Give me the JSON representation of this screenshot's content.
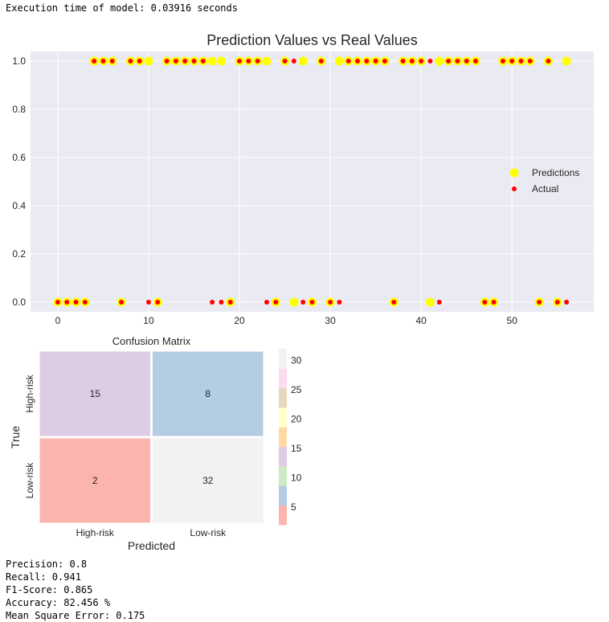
{
  "output": {
    "execution_time": "Execution time of model: 0.03916 seconds",
    "metrics": [
      "Precision: 0.8",
      "Recall: 0.941",
      "F1-Score: 0.865",
      "Accuracy: 82.456 %",
      "Mean Square Error: 0.175"
    ]
  },
  "colors": {
    "plot_bg": "#eaeaf2",
    "predictions": "#ffff00",
    "actual": "#ff0000"
  },
  "chart_data": [
    {
      "type": "scatter",
      "title": "Prediction Values vs Real Values",
      "xlabel": "",
      "ylabel": "",
      "xlim": [
        -3,
        59
      ],
      "ylim": [
        -0.04,
        1.04
      ],
      "xticks": [
        0,
        10,
        20,
        30,
        40,
        50
      ],
      "yticks": [
        0.0,
        0.2,
        0.4,
        0.6,
        0.8,
        1.0
      ],
      "ytick_labels": [
        "0.0",
        "0.2",
        "0.4",
        "0.6",
        "0.8",
        "1.0"
      ],
      "legend_position": "center-right",
      "series": [
        {
          "name": "Predictions",
          "x": [
            0,
            1,
            2,
            3,
            4,
            5,
            6,
            7,
            8,
            9,
            10,
            11,
            12,
            13,
            14,
            15,
            16,
            17,
            18,
            19,
            20,
            21,
            22,
            23,
            24,
            25,
            26,
            27,
            28,
            29,
            30,
            31,
            32,
            33,
            34,
            35,
            36,
            37,
            38,
            39,
            40,
            41,
            42,
            43,
            44,
            45,
            46,
            47,
            48,
            49,
            50,
            51,
            52,
            53,
            54,
            55,
            56
          ],
          "y": [
            0,
            0,
            0,
            0,
            1,
            1,
            1,
            0,
            1,
            1,
            1,
            0,
            1,
            1,
            1,
            1,
            1,
            1,
            1,
            0,
            1,
            1,
            1,
            1,
            0,
            1,
            0,
            1,
            0,
            1,
            0,
            1,
            1,
            1,
            1,
            1,
            1,
            0,
            1,
            1,
            1,
            0,
            1,
            1,
            1,
            1,
            1,
            0,
            0,
            1,
            1,
            1,
            1,
            0,
            1,
            0,
            1
          ]
        },
        {
          "name": "Actual",
          "x": [
            0,
            1,
            2,
            3,
            4,
            5,
            6,
            7,
            8,
            9,
            10,
            11,
            12,
            13,
            14,
            15,
            16,
            17,
            18,
            19,
            20,
            21,
            22,
            23,
            24,
            25,
            26,
            27,
            28,
            29,
            30,
            31,
            32,
            33,
            34,
            35,
            36,
            37,
            38,
            39,
            40,
            41,
            42,
            43,
            44,
            45,
            46,
            47,
            48,
            49,
            50,
            51,
            52,
            53,
            54,
            55,
            56
          ],
          "y": [
            0,
            0,
            0,
            0,
            1,
            1,
            1,
            0,
            1,
            1,
            0,
            0,
            1,
            1,
            1,
            1,
            1,
            0,
            0,
            0,
            1,
            1,
            1,
            0,
            0,
            1,
            1,
            0,
            0,
            1,
            0,
            0,
            1,
            1,
            1,
            1,
            1,
            0,
            1,
            1,
            1,
            1,
            0,
            1,
            1,
            1,
            1,
            0,
            0,
            1,
            1,
            1,
            1,
            0,
            1,
            0,
            0
          ]
        }
      ]
    },
    {
      "type": "heatmap",
      "title": "Confusion Matrix",
      "xlabel": "Predicted",
      "ylabel": "True",
      "x_categories": [
        "High-risk",
        "Low-risk"
      ],
      "y_categories": [
        "High-risk",
        "Low-risk"
      ],
      "values": [
        [
          15,
          8
        ],
        [
          2,
          32
        ]
      ],
      "value_labels": [
        [
          "15",
          "8"
        ],
        [
          "2",
          "32"
        ]
      ],
      "colormap": "Pastel1",
      "colorbar_range": [
        2,
        32
      ],
      "colorbar_ticks": [
        5,
        10,
        15,
        20,
        25,
        30
      ],
      "colorbar_tick_labels": [
        "5",
        "10",
        "15",
        "20",
        "25",
        "30"
      ]
    }
  ]
}
